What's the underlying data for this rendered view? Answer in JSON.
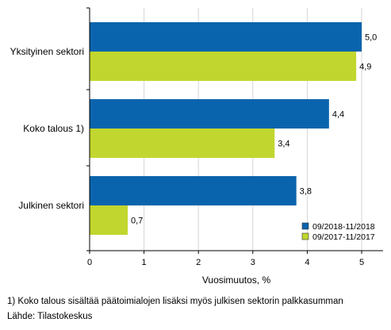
{
  "chart_data": {
    "type": "bar",
    "orientation": "horizontal",
    "title": "",
    "xlabel": "Vuosimuutos, %",
    "ylabel": "",
    "categories": [
      "Yksityinen sektori",
      "Koko talous 1)",
      "Julkinen sektori"
    ],
    "series": [
      {
        "name": "09/2018-11/2018",
        "values": [
          5.0,
          4.4,
          3.8
        ],
        "labels": [
          "5,0",
          "4,4",
          "3,8"
        ],
        "color": "#0a64ad"
      },
      {
        "name": "09/2017-11/2017",
        "values": [
          4.9,
          3.4,
          0.7
        ],
        "labels": [
          "4,9",
          "3,4",
          "0,7"
        ],
        "color": "#c1d62e"
      }
    ],
    "xlim": [
      0,
      5.5
    ],
    "xticks": [
      0,
      1,
      2,
      3,
      4,
      5
    ],
    "xtick_labels": [
      "0",
      "1",
      "2",
      "3",
      "4",
      "5"
    ],
    "grid": "vertical",
    "legend_position": "bottom-right"
  },
  "footnotes": {
    "note": "1) Koko talous sisältää päätoimialojen lisäksi myös julkisen sektorin palkkasumman",
    "source": "Lähde: Tilastokeskus"
  }
}
